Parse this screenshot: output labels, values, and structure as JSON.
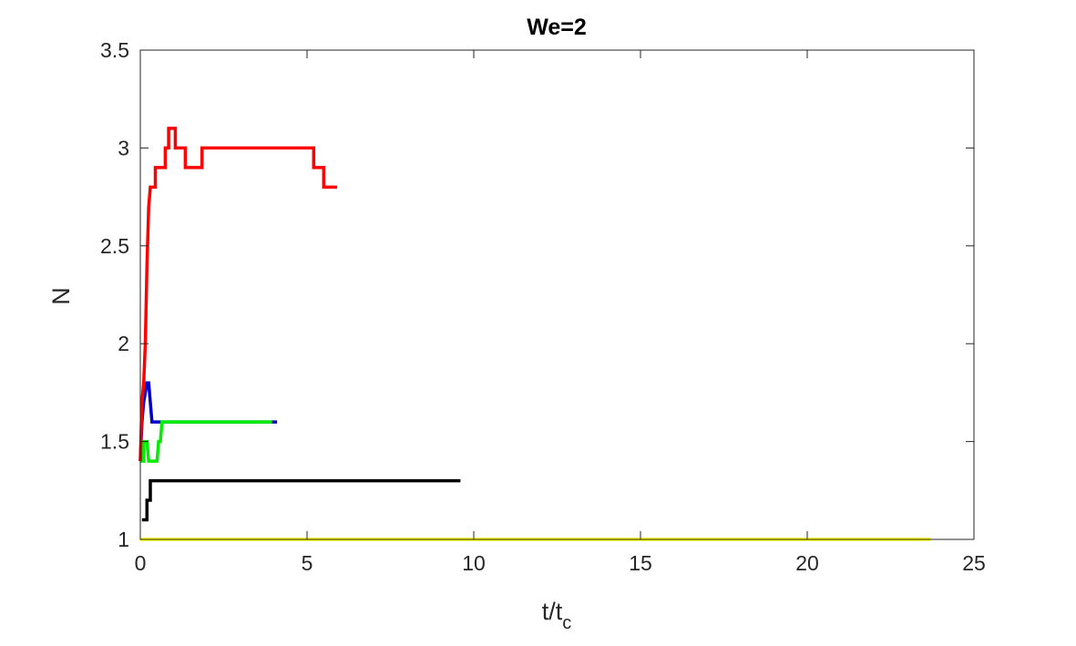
{
  "chart_data": {
    "type": "line",
    "title": "We=2",
    "xlabel_main": "t/t",
    "xlabel_sub": "c",
    "ylabel": "N",
    "xlim": [
      0,
      25
    ],
    "ylim": [
      1,
      3.5
    ],
    "xticks": [
      0,
      5,
      10,
      15,
      20,
      25
    ],
    "yticks": [
      1,
      1.5,
      2,
      2.5,
      3,
      3.5
    ],
    "xtick_labels": [
      "0",
      "5",
      "10",
      "15",
      "20",
      "25"
    ],
    "ytick_labels": [
      "1",
      "1.5",
      "2",
      "2.5",
      "3",
      "3.5"
    ],
    "grid": false,
    "series": [
      {
        "color": "#ffff00",
        "points": [
          [
            0,
            1.0
          ],
          [
            23.7,
            1.0
          ]
        ]
      },
      {
        "color": "#000000",
        "points": [
          [
            0.05,
            1.1
          ],
          [
            0.2,
            1.1
          ],
          [
            0.2,
            1.2
          ],
          [
            0.3,
            1.2
          ],
          [
            0.3,
            1.3
          ],
          [
            9.6,
            1.3
          ]
        ]
      },
      {
        "color": "#0000cc",
        "points": [
          [
            0,
            1.4
          ],
          [
            0.05,
            1.6
          ],
          [
            0.1,
            1.7
          ],
          [
            0.15,
            1.75
          ],
          [
            0.2,
            1.8
          ],
          [
            0.25,
            1.8
          ],
          [
            0.3,
            1.7
          ],
          [
            0.35,
            1.6
          ],
          [
            4.1,
            1.6
          ]
        ]
      },
      {
        "color": "#00ee00",
        "points": [
          [
            0,
            1.4
          ],
          [
            0.1,
            1.4
          ],
          [
            0.1,
            1.5
          ],
          [
            0.2,
            1.5
          ],
          [
            0.25,
            1.4
          ],
          [
            0.5,
            1.4
          ],
          [
            0.55,
            1.5
          ],
          [
            0.6,
            1.5
          ],
          [
            0.65,
            1.6
          ],
          [
            3.95,
            1.6
          ]
        ]
      },
      {
        "color": "#ff0000",
        "points": [
          [
            0,
            1.4
          ],
          [
            0.05,
            1.7
          ],
          [
            0.1,
            1.8
          ],
          [
            0.15,
            2.0
          ],
          [
            0.2,
            2.4
          ],
          [
            0.25,
            2.7
          ],
          [
            0.3,
            2.8
          ],
          [
            0.45,
            2.8
          ],
          [
            0.45,
            2.9
          ],
          [
            0.75,
            2.9
          ],
          [
            0.75,
            3.0
          ],
          [
            0.85,
            3.0
          ],
          [
            0.85,
            3.1
          ],
          [
            1.05,
            3.1
          ],
          [
            1.05,
            3.0
          ],
          [
            1.35,
            3.0
          ],
          [
            1.35,
            2.9
          ],
          [
            1.85,
            2.9
          ],
          [
            1.85,
            3.0
          ],
          [
            5.2,
            3.0
          ],
          [
            5.2,
            2.9
          ],
          [
            5.5,
            2.9
          ],
          [
            5.5,
            2.8
          ],
          [
            5.9,
            2.8
          ]
        ]
      }
    ]
  }
}
